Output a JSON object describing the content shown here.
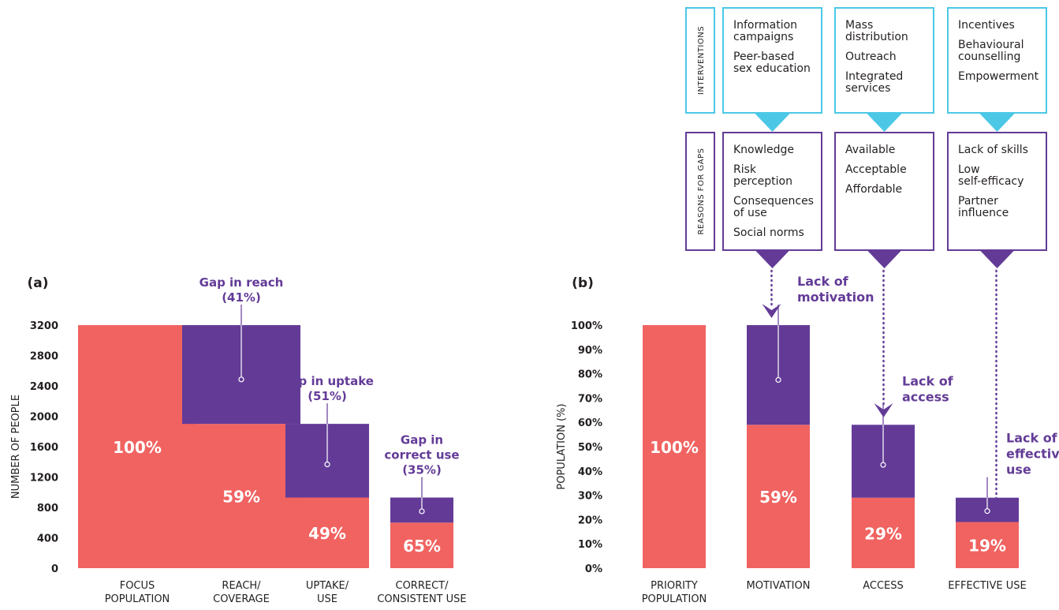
{
  "colors": {
    "coral": "#f06361",
    "purple": "#633b97",
    "cyan": "#4cc8e6",
    "text": "#231f20",
    "white": "#ffffff"
  },
  "panels": {
    "a_label": "(a)",
    "b_label": "(b)"
  },
  "chart_data": [
    {
      "type": "bar",
      "stacked": true,
      "ylabel": "NUMBER OF PEOPLE",
      "ylim": [
        0,
        3200
      ],
      "yticks": [
        "0",
        "400",
        "800",
        "1200",
        "1600",
        "2000",
        "2400",
        "2800",
        "3200"
      ],
      "categories": [
        [
          "FOCUS",
          "POPULATION"
        ],
        [
          "REACH/",
          "COVERAGE"
        ],
        [
          "UPTAKE/",
          "USE"
        ],
        [
          "CORRECT/",
          "CONSISTENT USE"
        ]
      ],
      "series": [
        {
          "values": [
            3200,
            1900,
            930,
            600
          ]
        },
        {
          "values": [
            0,
            1300,
            970,
            330
          ]
        }
      ],
      "bar_labels": [
        "100%",
        "59%",
        "49%",
        "65%"
      ],
      "annotations": [
        {
          "bar": 1,
          "lines": [
            "Gap in reach"
          ],
          "pct": "(41%)"
        },
        {
          "bar": 2,
          "lines": [
            "Gap in uptake"
          ],
          "pct": "(51%)"
        },
        {
          "bar": 3,
          "lines": [
            "Gap in",
            "correct use"
          ],
          "pct": "(35%)"
        }
      ]
    },
    {
      "type": "bar",
      "stacked": true,
      "ylabel": "POPULATION (%)",
      "ylim": [
        0,
        100
      ],
      "yticks": [
        "0%",
        "10%",
        "20%",
        "30%",
        "40%",
        "50%",
        "60%",
        "70%",
        "80%",
        "90%",
        "100%"
      ],
      "categories": [
        [
          "PRIORITY",
          "POPULATION"
        ],
        [
          "MOTIVATION"
        ],
        [
          "ACCESS"
        ],
        [
          "EFFECTIVE USE"
        ]
      ],
      "series": [
        {
          "values": [
            100,
            59,
            29,
            19
          ]
        },
        {
          "values": [
            0,
            41,
            30,
            10
          ]
        }
      ],
      "bar_labels": [
        "100%",
        "59%",
        "29%",
        "19%"
      ],
      "annotations": [
        {
          "bar": 1,
          "lines": [
            "Lack of",
            "motivation"
          ]
        },
        {
          "bar": 2,
          "lines": [
            "Lack of",
            "access"
          ]
        },
        {
          "bar": 3,
          "lines": [
            "Lack of",
            "effective",
            "use"
          ]
        }
      ]
    }
  ],
  "interventions": {
    "label": "INTERVENTIONS",
    "columns": [
      {
        "items": [
          [
            "Information",
            "campaigns"
          ],
          [
            "Peer-based",
            "sex education"
          ]
        ]
      },
      {
        "items": [
          [
            "Mass",
            "distribution"
          ],
          [
            "Outreach"
          ],
          [
            "Integrated",
            "services"
          ]
        ]
      },
      {
        "items": [
          [
            "Incentives"
          ],
          [
            "Behavioural",
            "counselling"
          ],
          [
            "Empowerment"
          ]
        ]
      }
    ]
  },
  "reasons": {
    "label": "REASONS FOR GAPS",
    "columns": [
      {
        "items": [
          [
            "Knowledge"
          ],
          [
            "Risk",
            "perception"
          ],
          [
            "Consequences",
            "of use"
          ],
          [
            "Social norms"
          ]
        ]
      },
      {
        "items": [
          [
            "Available"
          ],
          [
            "Acceptable"
          ],
          [
            "Affordable"
          ]
        ]
      },
      {
        "items": [
          [
            "Lack of skills"
          ],
          [
            "Low",
            "self-efficacy"
          ],
          [
            "Partner",
            "influence"
          ]
        ]
      }
    ]
  }
}
